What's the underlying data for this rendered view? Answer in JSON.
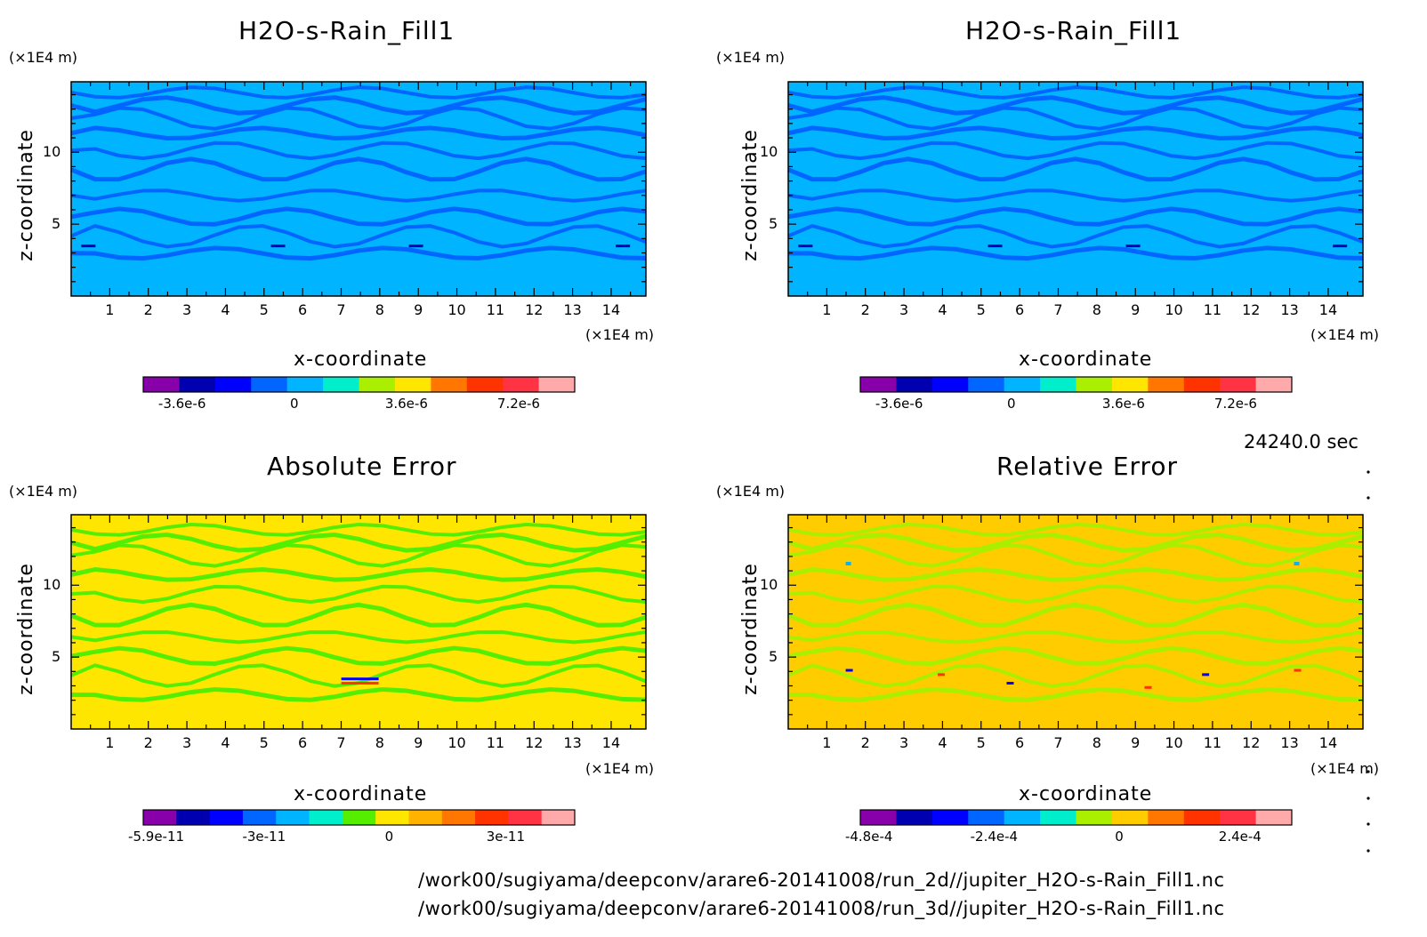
{
  "time_label": "24240.0 sec",
  "files": [
    "/work00/sugiyama/deepconv/arare6-20141008/run_2d//jupiter_H2O-s-Rain_Fill1.nc",
    "/work00/sugiyama/deepconv/arare6-20141008/run_3d//jupiter_H2O-s-Rain_Fill1.nc"
  ],
  "colors": {
    "scale": [
      "#8800aa",
      "#0000b0",
      "#0000ff",
      "#0066ff",
      "#00b4ff",
      "#00eecc",
      "#55ee00",
      "#aaee00",
      "#ffe600",
      "#ffb300",
      "#ff7700",
      "#ff3300",
      "#ff3344",
      "#ffaaaa"
    ]
  },
  "chart_data": [
    {
      "type": "heatmap",
      "title": "H2O-s-Rain_Fill1",
      "xlabel": "x-coordinate",
      "ylabel": "z-coordinate",
      "x_unit": "(×1E4 m)",
      "y_unit": "(×1E4 m)",
      "xlim": [
        0,
        14.9
      ],
      "ylim": [
        0,
        14.9
      ],
      "x_ticks": [
        "1",
        "2",
        "3",
        "4",
        "5",
        "6",
        "7",
        "8",
        "9",
        "10",
        "11",
        "12",
        "13",
        "14"
      ],
      "y_ticks": [
        "5",
        "10"
      ],
      "dominant_value": 0,
      "colorbar_labels": [
        "-3.6e-6",
        "0",
        "3.6e-6",
        "7.2e-6"
      ],
      "colorbar_colors": [
        "#8800aa",
        "#0000b0",
        "#0000ff",
        "#0066ff",
        "#00b4ff",
        "#00eecc",
        "#aaee00",
        "#ffe600",
        "#ff7700",
        "#ff3300",
        "#ff3344",
        "#ffaaaa"
      ]
    },
    {
      "type": "heatmap",
      "title": "H2O-s-Rain_Fill1",
      "xlabel": "x-coordinate",
      "ylabel": "z-coordinate",
      "x_unit": "(×1E4 m)",
      "y_unit": "(×1E4 m)",
      "xlim": [
        0,
        14.9
      ],
      "ylim": [
        0,
        14.9
      ],
      "x_ticks": [
        "1",
        "2",
        "3",
        "4",
        "5",
        "6",
        "7",
        "8",
        "9",
        "10",
        "11",
        "12",
        "13",
        "14"
      ],
      "y_ticks": [
        "5",
        "10"
      ],
      "dominant_value": 0,
      "colorbar_labels": [
        "-3.6e-6",
        "0",
        "3.6e-6",
        "7.2e-6"
      ],
      "colorbar_colors": [
        "#8800aa",
        "#0000b0",
        "#0000ff",
        "#0066ff",
        "#00b4ff",
        "#00eecc",
        "#aaee00",
        "#ffe600",
        "#ff7700",
        "#ff3300",
        "#ff3344",
        "#ffaaaa"
      ]
    },
    {
      "type": "heatmap",
      "title": "Absolute Error",
      "xlabel": "x-coordinate",
      "ylabel": "z-coordinate",
      "x_unit": "(×1E4 m)",
      "y_unit": "(×1E4 m)",
      "xlim": [
        0,
        14.9
      ],
      "ylim": [
        0,
        14.9
      ],
      "x_ticks": [
        "1",
        "2",
        "3",
        "4",
        "5",
        "6",
        "7",
        "8",
        "9",
        "10",
        "11",
        "12",
        "13",
        "14"
      ],
      "y_ticks": [
        "5",
        "10"
      ],
      "dominant_value": 0,
      "colorbar_labels": [
        "-5.9e-11",
        "-3e-11",
        "0",
        "3e-11"
      ],
      "colorbar_colors": [
        "#8800aa",
        "#0000b0",
        "#0000ff",
        "#0066ff",
        "#00b4ff",
        "#00eecc",
        "#55ee00",
        "#ffe600",
        "#ffb300",
        "#ff7700",
        "#ff3300",
        "#ff3344",
        "#ffaaaa"
      ]
    },
    {
      "type": "heatmap",
      "title": "Relative Error",
      "xlabel": "x-coordinate",
      "ylabel": "z-coordinate",
      "x_unit": "(×1E4 m)",
      "y_unit": "(×1E4 m)",
      "xlim": [
        0,
        14.9
      ],
      "ylim": [
        0,
        14.9
      ],
      "x_ticks": [
        "1",
        "2",
        "3",
        "4",
        "5",
        "6",
        "7",
        "8",
        "9",
        "10",
        "11",
        "12",
        "13",
        "14"
      ],
      "y_ticks": [
        "5",
        "10"
      ],
      "dominant_value": 0,
      "colorbar_labels": [
        "-4.8e-4",
        "-2.4e-4",
        "0",
        "2.4e-4"
      ],
      "colorbar_colors": [
        "#8800aa",
        "#0000b0",
        "#0000ff",
        "#0066ff",
        "#00b4ff",
        "#00eecc",
        "#aaee00",
        "#ffcc00",
        "#ff7700",
        "#ff3300",
        "#ff3344",
        "#ffaaaa"
      ]
    }
  ]
}
